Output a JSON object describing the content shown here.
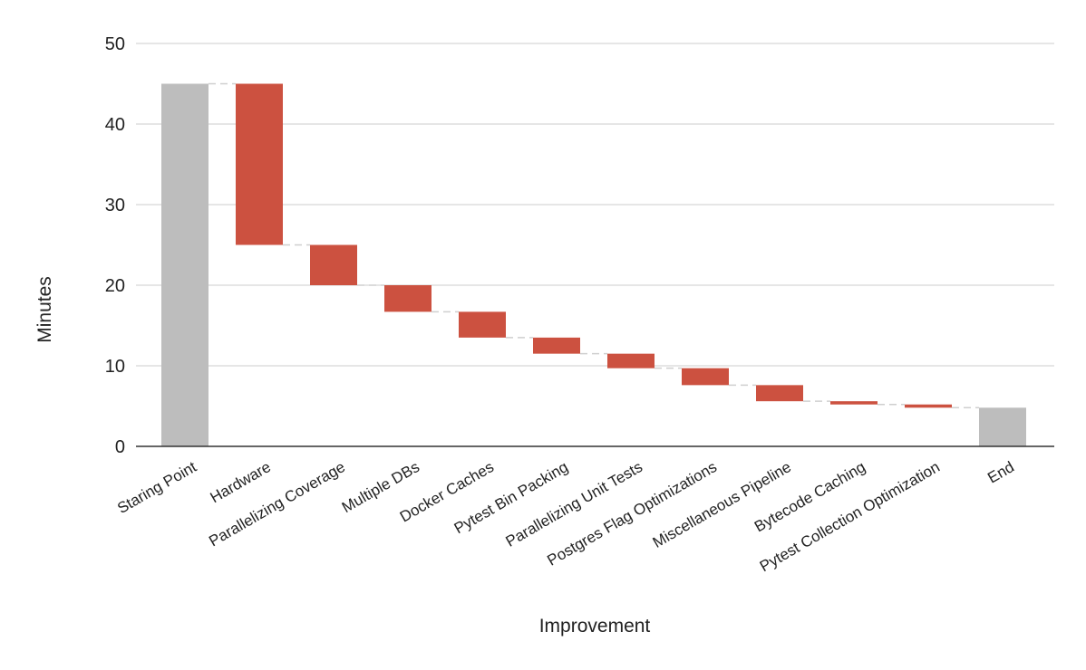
{
  "chart_data": {
    "type": "waterfall",
    "title": "",
    "xlabel": "Improvement",
    "ylabel": "Minutes",
    "ylim": [
      0,
      50
    ],
    "yticks": [
      0,
      10,
      20,
      30,
      40,
      50
    ],
    "grid": true,
    "legend": "none",
    "categories": [
      "Staring Point",
      "Hardware",
      "Parallelizing Coverage",
      "Multiple DBs",
      "Docker Caches",
      "Pytest Bin Packing",
      "Parallelizing Unit Tests",
      "Postgres Flag Optimizations",
      "Miscellaneous Pipeline",
      "Bytecode Caching",
      "Pytest Collection Optimization",
      "End"
    ],
    "bars": [
      {
        "kind": "total",
        "start": 0,
        "end": 45
      },
      {
        "kind": "decrease",
        "start": 45,
        "end": 25
      },
      {
        "kind": "decrease",
        "start": 25,
        "end": 20
      },
      {
        "kind": "decrease",
        "start": 20,
        "end": 16.7
      },
      {
        "kind": "decrease",
        "start": 16.7,
        "end": 13.5
      },
      {
        "kind": "decrease",
        "start": 13.5,
        "end": 11.5
      },
      {
        "kind": "decrease",
        "start": 11.5,
        "end": 9.7
      },
      {
        "kind": "decrease",
        "start": 9.7,
        "end": 7.6
      },
      {
        "kind": "decrease",
        "start": 7.6,
        "end": 5.6
      },
      {
        "kind": "decrease",
        "start": 5.6,
        "end": 5.2
      },
      {
        "kind": "decrease",
        "start": 5.2,
        "end": 4.8
      },
      {
        "kind": "total",
        "start": 0,
        "end": 4.8
      }
    ],
    "colors": {
      "total": "#bdbdbd",
      "decrease": "#cc5140",
      "grid": "#cccccc",
      "axis": "#333333",
      "connector": "#cfcfcf"
    }
  }
}
